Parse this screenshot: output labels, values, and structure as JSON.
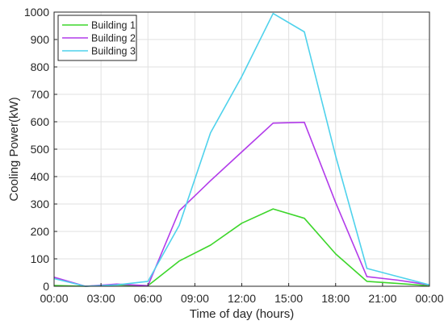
{
  "chart_data": {
    "type": "line",
    "title": "",
    "xlabel": "Time of day (hours)",
    "ylabel": "Cooling Power(kW)",
    "xlim": [
      0,
      24
    ],
    "ylim": [
      0,
      1000
    ],
    "x_ticks": [
      0,
      3,
      6,
      9,
      12,
      15,
      18,
      21,
      24
    ],
    "x_tick_labels": [
      "00:00",
      "03:00",
      "06:00",
      "09:00",
      "12:00",
      "15:00",
      "18:00",
      "21:00",
      "00:00"
    ],
    "y_ticks": [
      0,
      100,
      200,
      300,
      400,
      500,
      600,
      700,
      800,
      900,
      1000
    ],
    "y_tick_labels": [
      "0",
      "100",
      "200",
      "300",
      "400",
      "500",
      "600",
      "700",
      "800",
      "900",
      "1000"
    ],
    "grid": true,
    "legend_position": "top-left",
    "x": [
      0,
      2,
      4,
      6,
      8,
      10,
      12,
      14,
      16,
      18,
      20,
      22,
      24
    ],
    "series": [
      {
        "name": "Building 1",
        "color": "#3dd62b",
        "values": [
          3,
          0,
          5,
          2,
          92,
          150,
          230,
          282,
          248,
          118,
          18,
          10,
          2
        ]
      },
      {
        "name": "Building 2",
        "color": "#b23bea",
        "values": [
          33,
          0,
          8,
          2,
          275,
          385,
          490,
          595,
          598,
          305,
          35,
          22,
          5
        ]
      },
      {
        "name": "Building 3",
        "color": "#4fd2ec",
        "values": [
          28,
          0,
          5,
          18,
          222,
          560,
          765,
          995,
          928,
          475,
          65,
          35,
          5
        ]
      }
    ]
  }
}
